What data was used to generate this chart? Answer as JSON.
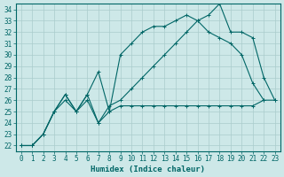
{
  "xlabel": "Humidex (Indice chaleur)",
  "xlim": [
    -0.5,
    23.5
  ],
  "ylim": [
    21.5,
    34.5
  ],
  "yticks": [
    22,
    23,
    24,
    25,
    26,
    27,
    28,
    29,
    30,
    31,
    32,
    33,
    34
  ],
  "xticks": [
    0,
    1,
    2,
    3,
    4,
    5,
    6,
    7,
    8,
    9,
    10,
    11,
    12,
    13,
    14,
    15,
    16,
    17,
    18,
    19,
    20,
    21,
    22,
    23
  ],
  "bg_color": "#cde8e8",
  "grid_color": "#aacccc",
  "line_color": "#006666",
  "line1_x": [
    0,
    1,
    2,
    3,
    4,
    5,
    6,
    7,
    8,
    9,
    10,
    11,
    12,
    13,
    14,
    15,
    16,
    17,
    18,
    19,
    20,
    21,
    22,
    23
  ],
  "line1_y": [
    22,
    22,
    23,
    25,
    26.5,
    25,
    26.5,
    24,
    25,
    25.5,
    25.5,
    25.5,
    25.5,
    25.5,
    25.5,
    25.5,
    25.5,
    25.5,
    25.5,
    25.5,
    25.5,
    25.5,
    26,
    26
  ],
  "line2_x": [
    0,
    1,
    2,
    3,
    4,
    5,
    6,
    7,
    8,
    9,
    10,
    11,
    12,
    13,
    14,
    15,
    16,
    17,
    18,
    19,
    20,
    21,
    22
  ],
  "line2_y": [
    22,
    22,
    23,
    25,
    26.5,
    25,
    26.5,
    28.5,
    25,
    30,
    31,
    32,
    32.5,
    32.5,
    33,
    33.5,
    33,
    32,
    31.5,
    31,
    30,
    27.5,
    26
  ],
  "line3_x": [
    0,
    1,
    2,
    3,
    4,
    5,
    6,
    7,
    8,
    9,
    10,
    11,
    12,
    13,
    14,
    15,
    16,
    17,
    18,
    19,
    20,
    21,
    22,
    23
  ],
  "line3_y": [
    22,
    22,
    23,
    25,
    26,
    25,
    26,
    24,
    25.5,
    26,
    27,
    28,
    29,
    30,
    31,
    32,
    33,
    33.5,
    34.5,
    32,
    32,
    31.5,
    28,
    26
  ],
  "tick_fontsize": 5.5,
  "xlabel_fontsize": 6.5
}
